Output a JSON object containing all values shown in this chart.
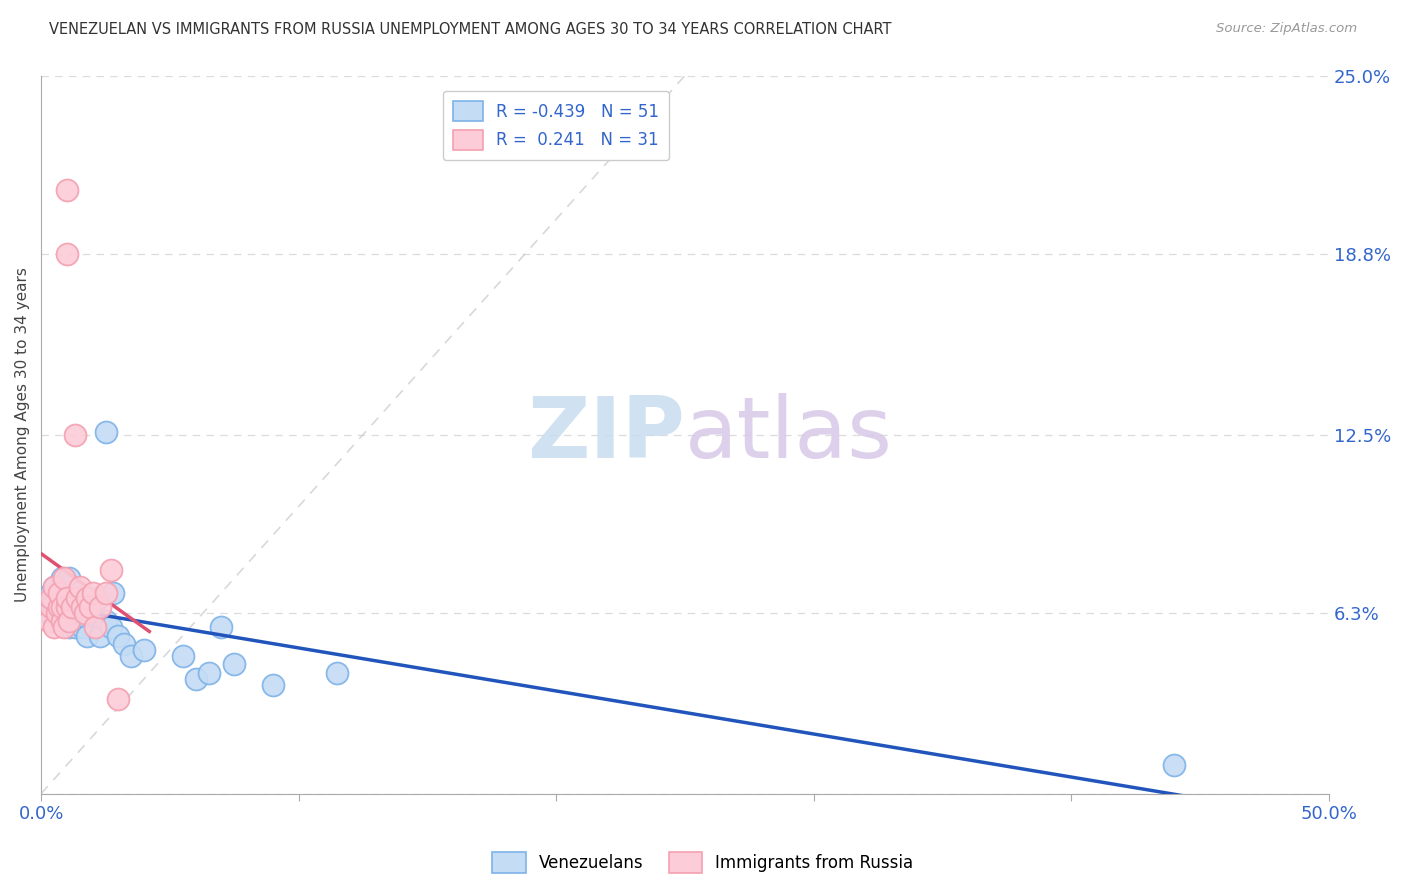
{
  "title": "VENEZUELAN VS IMMIGRANTS FROM RUSSIA UNEMPLOYMENT AMONG AGES 30 TO 34 YEARS CORRELATION CHART",
  "source": "Source: ZipAtlas.com",
  "ylabel": "Unemployment Among Ages 30 to 34 years",
  "xlim": [
    0.0,
    0.5
  ],
  "ylim": [
    0.0,
    0.25
  ],
  "xticks": [
    0.0,
    0.1,
    0.2,
    0.3,
    0.4,
    0.5
  ],
  "xticklabels": [
    "0.0%",
    "",
    "",
    "",
    "",
    "50.0%"
  ],
  "ytick_positions": [
    0.0,
    0.063,
    0.125,
    0.188,
    0.25
  ],
  "ytick_labels": [
    "",
    "6.3%",
    "12.5%",
    "18.8%",
    "25.0%"
  ],
  "watermark_zip": "ZIP",
  "watermark_atlas": "atlas",
  "blue_color": "#7EB3E8",
  "pink_color": "#F4A0B0",
  "blue_fill": "#C5DCF5",
  "pink_fill": "#FCCCD8",
  "trend_blue": "#2255BB",
  "trend_pink": "#E05070",
  "diag_color": "#C8C8C8",
  "venezuelan_x": [
    0.002,
    0.003,
    0.004,
    0.004,
    0.005,
    0.005,
    0.005,
    0.006,
    0.006,
    0.007,
    0.007,
    0.008,
    0.008,
    0.009,
    0.009,
    0.009,
    0.01,
    0.01,
    0.01,
    0.011,
    0.011,
    0.012,
    0.012,
    0.013,
    0.013,
    0.014,
    0.014,
    0.015,
    0.016,
    0.016,
    0.017,
    0.018,
    0.02,
    0.022,
    0.023,
    0.025,
    0.027,
    0.028,
    0.03,
    0.032,
    0.035,
    0.04,
    0.055,
    0.06,
    0.065,
    0.07,
    0.075,
    0.09,
    0.115,
    0.44,
    0.025
  ],
  "venezuelan_y": [
    0.065,
    0.063,
    0.067,
    0.07,
    0.065,
    0.068,
    0.072,
    0.06,
    0.068,
    0.065,
    0.062,
    0.07,
    0.075,
    0.063,
    0.065,
    0.068,
    0.06,
    0.065,
    0.072,
    0.058,
    0.075,
    0.065,
    0.068,
    0.058,
    0.062,
    0.065,
    0.07,
    0.06,
    0.058,
    0.065,
    0.062,
    0.055,
    0.065,
    0.068,
    0.055,
    0.06,
    0.058,
    0.07,
    0.055,
    0.052,
    0.048,
    0.05,
    0.048,
    0.04,
    0.042,
    0.058,
    0.045,
    0.038,
    0.042,
    0.01,
    0.126
  ],
  "russia_x": [
    0.003,
    0.004,
    0.004,
    0.005,
    0.005,
    0.006,
    0.007,
    0.007,
    0.008,
    0.008,
    0.009,
    0.009,
    0.01,
    0.01,
    0.011,
    0.012,
    0.013,
    0.014,
    0.015,
    0.016,
    0.017,
    0.018,
    0.019,
    0.02,
    0.021,
    0.023,
    0.025,
    0.027,
    0.03,
    0.01,
    0.01
  ],
  "russia_y": [
    0.06,
    0.065,
    0.068,
    0.058,
    0.072,
    0.063,
    0.065,
    0.07,
    0.06,
    0.065,
    0.058,
    0.075,
    0.065,
    0.068,
    0.06,
    0.065,
    0.125,
    0.068,
    0.072,
    0.065,
    0.063,
    0.068,
    0.065,
    0.07,
    0.058,
    0.065,
    0.07,
    0.078,
    0.033,
    0.188,
    0.21
  ]
}
